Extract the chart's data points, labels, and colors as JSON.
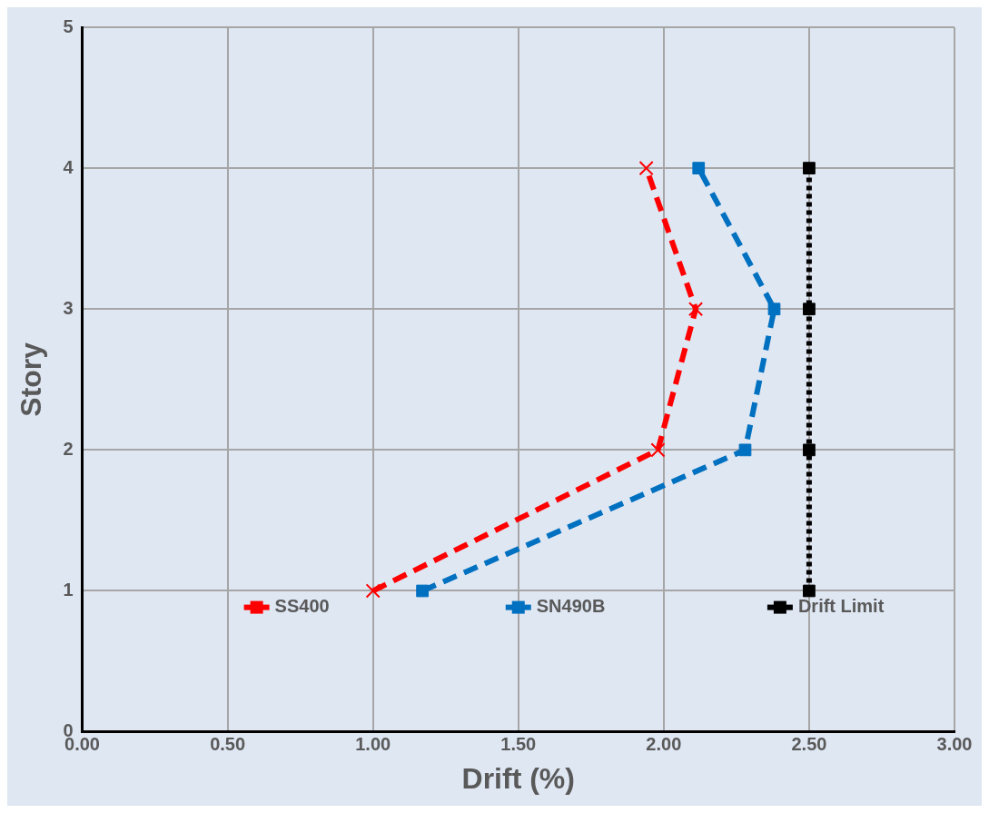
{
  "chart_data": {
    "type": "line",
    "xlabel": "Drift (%)",
    "ylabel": "Story",
    "xlim": [
      0,
      3
    ],
    "xticks": [
      {
        "value": 0,
        "label": "0.00"
      },
      {
        "value": 0.5,
        "label": "0.50"
      },
      {
        "value": 1,
        "label": "1.00"
      },
      {
        "value": 1.5,
        "label": "1.50"
      },
      {
        "value": 2,
        "label": "2.00"
      },
      {
        "value": 2.5,
        "label": "2.50"
      },
      {
        "value": 3,
        "label": "3.00"
      }
    ],
    "ylim": [
      0,
      5
    ],
    "yticks": [
      0,
      1,
      2,
      3,
      4,
      5
    ],
    "grid": true,
    "legend": "bottom",
    "series": [
      {
        "name": "SS400",
        "color": "#ff0000",
        "marker": "cross",
        "line_style": "dashed",
        "x": [
          1.0,
          1.98,
          2.11,
          1.94
        ],
        "values": [
          1,
          2,
          3,
          4
        ]
      },
      {
        "name": "SN490B",
        "color": "#0070c0",
        "marker": "square",
        "line_style": "dashed",
        "x": [
          1.17,
          2.28,
          2.38,
          2.12
        ],
        "values": [
          1,
          2,
          3,
          4
        ]
      },
      {
        "name": "Drift Limit",
        "color": "#000000",
        "marker": "square",
        "line_style": "dotted",
        "x": [
          2.5,
          2.5,
          2.5,
          2.5
        ],
        "values": [
          1,
          2,
          3,
          4
        ]
      }
    ]
  }
}
